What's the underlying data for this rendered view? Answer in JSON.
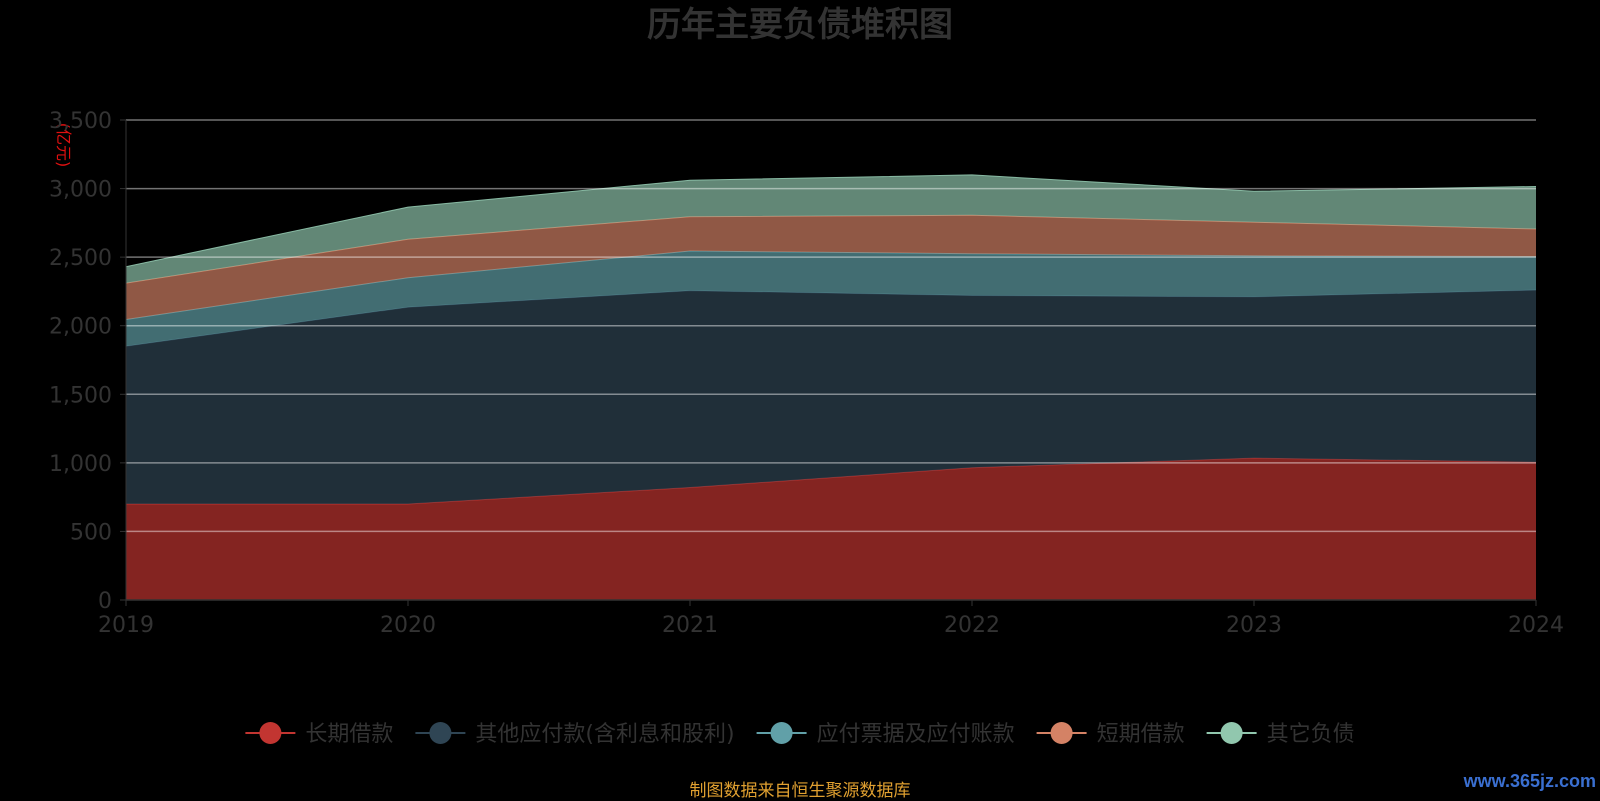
{
  "footer": {
    "source": "制图数据来自恒生聚源数据库",
    "watermark": "www.365jz.com"
  },
  "chart_data": {
    "type": "area",
    "title": "历年主要负债堆积图",
    "ylabel": "(亿元)",
    "xlabel": "",
    "x": [
      "2019",
      "2020",
      "2021",
      "2022",
      "2023",
      "2024"
    ],
    "ylim": [
      0,
      3500
    ],
    "yticks": [
      "0",
      "500",
      "1,000",
      "1,500",
      "2,000",
      "2,500",
      "3,000",
      "3,500"
    ],
    "stacked": true,
    "grid": true,
    "legend_position": "bottom",
    "series": [
      {
        "name": "长期借款",
        "color": "#c23531",
        "values": [
          700,
          700,
          820,
          965,
          1035,
          1005
        ]
      },
      {
        "name": "其他应付款(含利息和股利)",
        "color": "#2f4554",
        "values": [
          1150,
          1435,
          1435,
          1255,
          1175,
          1255
        ]
      },
      {
        "name": "应付票据及应付账款",
        "color": "#61a0a8",
        "values": [
          195,
          215,
          290,
          305,
          300,
          245
        ]
      },
      {
        "name": "短期借款",
        "color": "#d48265",
        "values": [
          265,
          280,
          250,
          280,
          245,
          200
        ]
      },
      {
        "name": "其它负债",
        "color": "#91c7ae",
        "values": [
          120,
          235,
          265,
          295,
          225,
          310
        ]
      }
    ]
  }
}
